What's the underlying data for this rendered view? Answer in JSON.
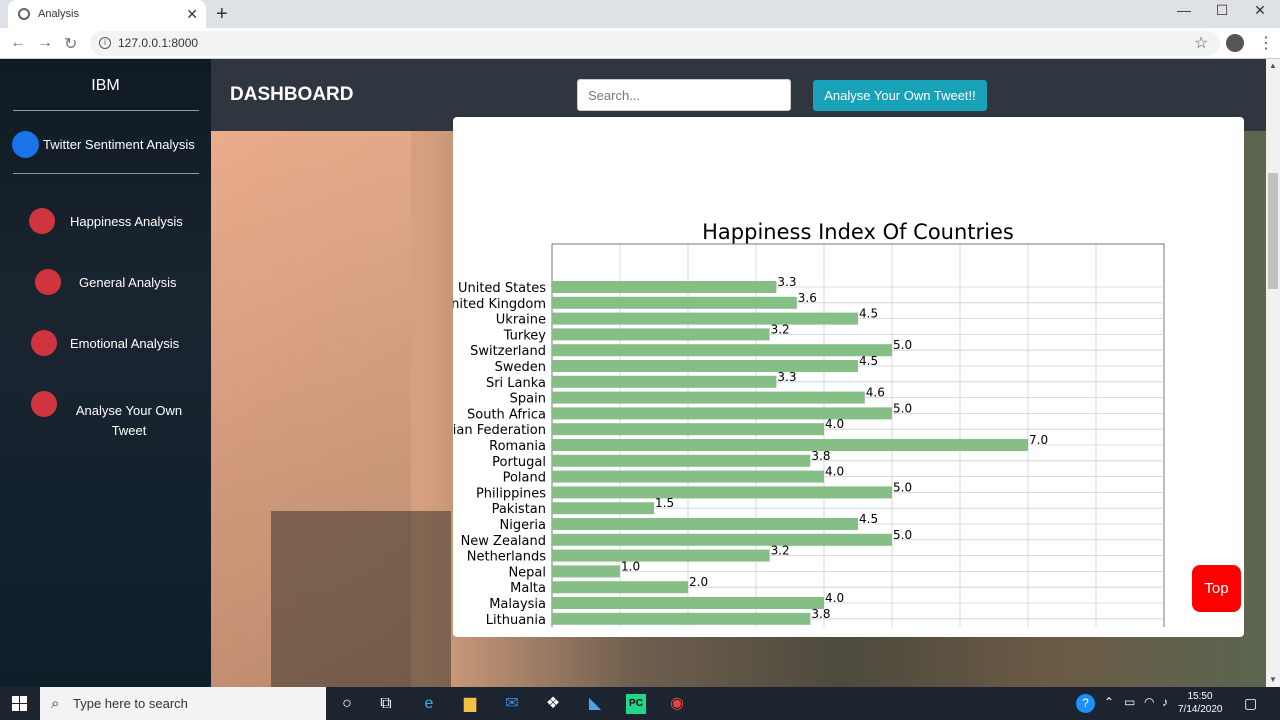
{
  "browser": {
    "tab_title": "Analysis",
    "url": "127.0.0.1:8000"
  },
  "sidebar": {
    "brand": "IBM",
    "title": "Twitter Sentiment Analysis",
    "items": [
      {
        "label": "Happiness Analysis"
      },
      {
        "label": "General Analysis"
      },
      {
        "label": "Emotional Analysis"
      },
      {
        "label": "Analyse Your Own Tweet"
      }
    ]
  },
  "header": {
    "title": "DASHBOARD",
    "search_placeholder": "Search...",
    "analyse_button": "Analyse Your Own Tweet!!"
  },
  "top_button": "Top",
  "chart_data": {
    "type": "bar",
    "orientation": "horizontal",
    "title": "Happiness Index Of Countries",
    "color": "#86bf86",
    "grid": true,
    "xlim": [
      0,
      9
    ],
    "categories": [
      "United States",
      "United Kingdom",
      "Ukraine",
      "Turkey",
      "Switzerland",
      "Sweden",
      "Sri Lanka",
      "Spain",
      "South Africa",
      "Russian Federation",
      "Romania",
      "Portugal",
      "Poland",
      "Philippines",
      "Pakistan",
      "Nigeria",
      "New Zealand",
      "Netherlands",
      "Nepal",
      "Malta",
      "Malaysia",
      "Lithuania"
    ],
    "values": [
      3.3,
      3.6,
      4.5,
      3.2,
      5.0,
      4.5,
      3.3,
      4.6,
      5.0,
      4.0,
      7.0,
      3.8,
      4.0,
      5.0,
      1.5,
      4.5,
      5.0,
      3.2,
      1.0,
      2.0,
      4.0,
      3.8
    ],
    "labels": [
      "3.3",
      "3.6",
      "4.5",
      "3.2",
      "5.0",
      "4.5",
      "3.3",
      "4.6",
      "5.0",
      "4.0",
      "7.0",
      "3.8",
      "4.0",
      "5.0",
      "1.5",
      "4.5",
      "5.0",
      "3.2",
      "1.0",
      "2.0",
      "4.0",
      "3.8"
    ]
  },
  "taskbar": {
    "search_placeholder": "Type here to search",
    "time": "15:50",
    "date": "7/14/2020"
  }
}
